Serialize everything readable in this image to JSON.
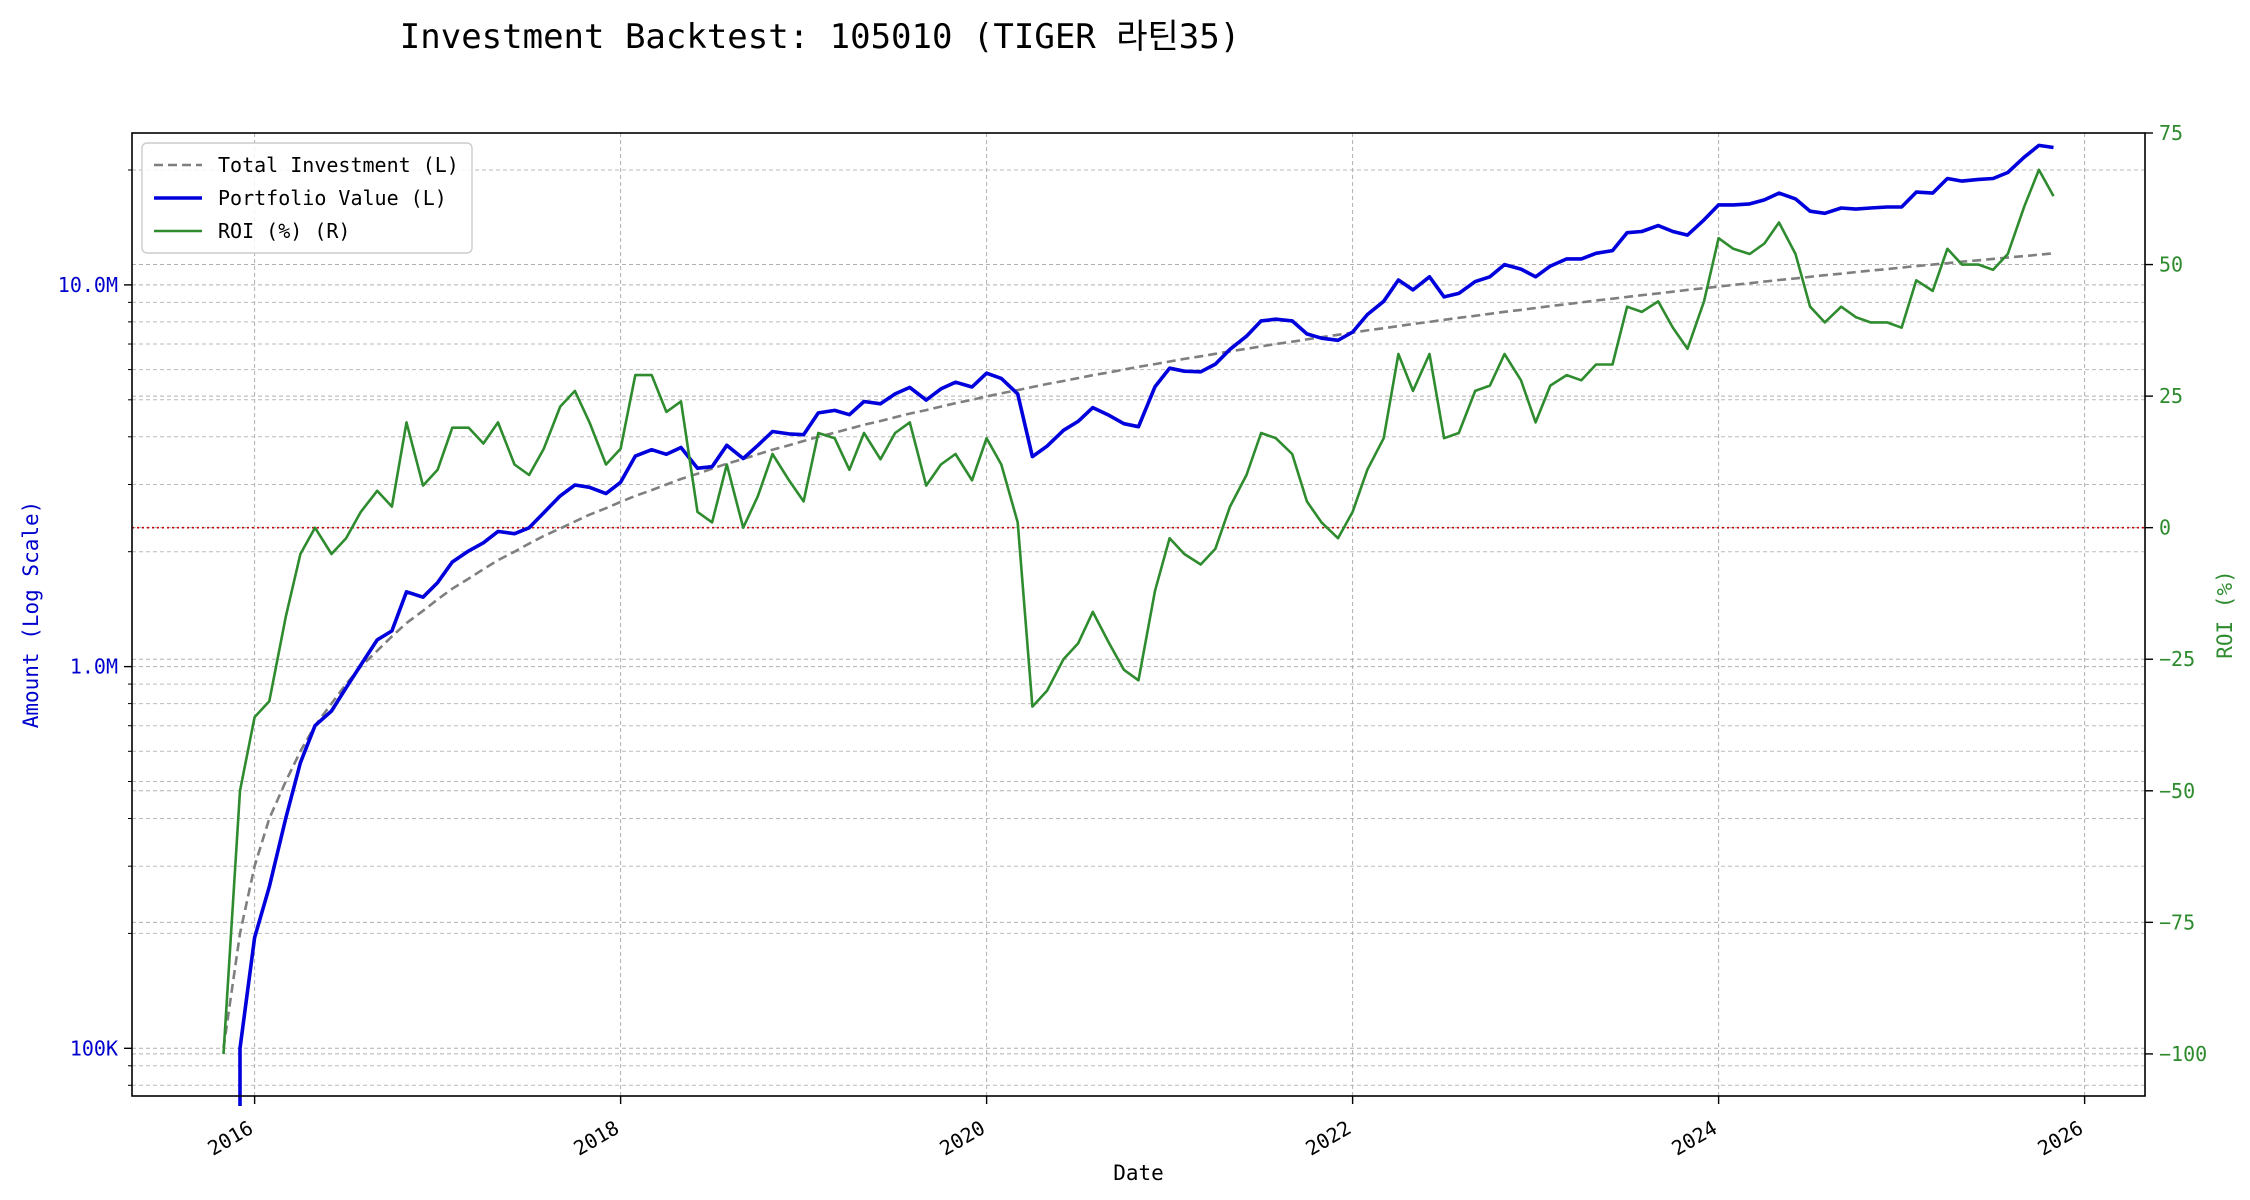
{
  "chart_data": {
    "type": "line",
    "title": "Investment Backtest: 105010 (TIGER 라틴35)",
    "xlabel": "Date",
    "ylabel_left": "Amount (Log Scale)",
    "ylabel_right": "ROI (%)",
    "left_scale": "log",
    "xlim": [
      2015.33,
      2026.33
    ],
    "ylim_left": [
      75000,
      25000000
    ],
    "ylim_right": [
      -108,
      75
    ],
    "x_ticks": [
      2016,
      2018,
      2020,
      2022,
      2024,
      2026
    ],
    "x_tick_labels": [
      "2016",
      "2018",
      "2020",
      "2022",
      "2024",
      "2026"
    ],
    "left_ticks": [
      100000,
      1000000,
      10000000
    ],
    "left_tick_labels": [
      "100K",
      "1.0M",
      "10.0M"
    ],
    "right_ticks": [
      -100,
      -75,
      -50,
      -25,
      0,
      25,
      50,
      75
    ],
    "right_tick_labels": [
      "−100",
      "−75",
      "−50",
      "−25",
      "0",
      "25",
      "50",
      "75"
    ],
    "grid": true,
    "zero_line_color": "#cc0000",
    "legend_position": "top-left",
    "x": [
      2015.83,
      2015.92,
      2016.0,
      2016.08,
      2016.17,
      2016.25,
      2016.33,
      2016.42,
      2016.5,
      2016.58,
      2016.67,
      2016.75,
      2016.83,
      2016.92,
      2017.0,
      2017.08,
      2017.17,
      2017.25,
      2017.33,
      2017.42,
      2017.5,
      2017.58,
      2017.67,
      2017.75,
      2017.83,
      2017.92,
      2018.0,
      2018.08,
      2018.17,
      2018.25,
      2018.33,
      2018.42,
      2018.5,
      2018.58,
      2018.67,
      2018.75,
      2018.83,
      2018.92,
      2019.0,
      2019.08,
      2019.17,
      2019.25,
      2019.33,
      2019.42,
      2019.5,
      2019.58,
      2019.67,
      2019.75,
      2019.83,
      2019.92,
      2020.0,
      2020.08,
      2020.17,
      2020.25,
      2020.33,
      2020.42,
      2020.5,
      2020.58,
      2020.67,
      2020.75,
      2020.83,
      2020.92,
      2021.0,
      2021.08,
      2021.17,
      2021.25,
      2021.33,
      2021.42,
      2021.5,
      2021.58,
      2021.67,
      2021.75,
      2021.83,
      2021.92,
      2022.0,
      2022.08,
      2022.17,
      2022.25,
      2022.33,
      2022.42,
      2022.5,
      2022.58,
      2022.67,
      2022.75,
      2022.83,
      2022.92,
      2023.0,
      2023.08,
      2023.17,
      2023.25,
      2023.33,
      2023.42,
      2023.5,
      2023.58,
      2023.67,
      2023.75,
      2023.83,
      2023.92,
      2024.0,
      2024.08,
      2024.17,
      2024.25,
      2024.33,
      2024.42,
      2024.5,
      2024.58,
      2024.67,
      2024.75,
      2024.83,
      2024.92,
      2025.0,
      2025.08,
      2025.17,
      2025.25,
      2025.33,
      2025.42,
      2025.5,
      2025.58,
      2025.67,
      2025.75,
      2025.83
    ],
    "series": [
      {
        "name": "Total Investment (L)",
        "axis": "left",
        "color": "#7f7f7f",
        "style": "dashed",
        "values": [
          100000,
          200000,
          300000,
          400000,
          500000,
          600000,
          700000,
          800000,
          900000,
          1000000,
          1100000,
          1200000,
          1300000,
          1400000,
          1500000,
          1600000,
          1700000,
          1800000,
          1900000,
          2000000,
          2100000,
          2200000,
          2300000,
          2400000,
          2500000,
          2600000,
          2700000,
          2800000,
          2900000,
          3000000,
          3100000,
          3200000,
          3300000,
          3400000,
          3500000,
          3600000,
          3700000,
          3800000,
          3900000,
          4000000,
          4100000,
          4200000,
          4300000,
          4400000,
          4500000,
          4600000,
          4700000,
          4800000,
          4900000,
          5000000,
          5100000,
          5200000,
          5300000,
          5400000,
          5500000,
          5600000,
          5700000,
          5800000,
          5900000,
          6000000,
          6100000,
          6200000,
          6300000,
          6400000,
          6500000,
          6600000,
          6700000,
          6800000,
          6900000,
          7000000,
          7100000,
          7200000,
          7300000,
          7400000,
          7500000,
          7600000,
          7700000,
          7800000,
          7900000,
          8000000,
          8100000,
          8200000,
          8300000,
          8400000,
          8500000,
          8600000,
          8700000,
          8800000,
          8900000,
          9000000,
          9100000,
          9200000,
          9300000,
          9400000,
          9500000,
          9600000,
          9700000,
          9800000,
          9900000,
          10000000,
          10100000,
          10200000,
          10300000,
          10400000,
          10500000,
          10600000,
          10700000,
          10800000,
          10900000,
          11000000,
          11100000,
          11200000,
          11300000,
          11400000,
          11500000,
          11600000,
          11700000,
          11800000,
          11900000,
          12000000,
          12100000
        ]
      },
      {
        "name": "Portfolio Value (L)",
        "axis": "left",
        "color": "#0000dd",
        "style": "solid",
        "values": [
          null,
          100000,
          195000,
          265000,
          400000,
          560000,
          700000,
          765000,
          880000,
          1010000,
          1175000,
          1240000,
          1570000,
          1520000,
          1660000,
          1880000,
          2010000,
          2110000,
          2260000,
          2230000,
          2310000,
          2530000,
          2800000,
          2990000,
          2950000,
          2840000,
          3040000,
          3560000,
          3700000,
          3600000,
          3750000,
          3310000,
          3340000,
          3800000,
          3510000,
          3800000,
          4130000,
          4070000,
          4050000,
          4620000,
          4690000,
          4570000,
          4950000,
          4880000,
          5180000,
          5390000,
          4990000,
          5340000,
          5560000,
          5400000,
          5870000,
          5690000,
          5180000,
          3550000,
          3780000,
          4160000,
          4390000,
          4770000,
          4550000,
          4330000,
          4250000,
          5410000,
          6050000,
          5940000,
          5920000,
          6200000,
          6780000,
          7340000,
          8050000,
          8130000,
          8050000,
          7440000,
          7250000,
          7160000,
          7520000,
          8360000,
          9060000,
          10300000,
          9700000,
          10500000,
          9300000,
          9500000,
          10200000,
          10500000,
          11300000,
          11000000,
          10500000,
          11200000,
          11700000,
          11700000,
          12100000,
          12300000,
          13700000,
          13800000,
          14300000,
          13800000,
          13500000,
          14800000,
          16200000,
          16200000,
          16300000,
          16700000,
          17400000,
          16800000,
          15600000,
          15400000,
          15900000,
          15800000,
          15900000,
          16000000,
          16000000,
          17500000,
          17400000,
          19000000,
          18700000,
          18900000,
          19000000,
          19700000,
          21600000,
          23200000,
          22900000
        ]
      },
      {
        "name": "ROI (%) (R)",
        "axis": "right",
        "color": "#2e8b2e",
        "style": "solid",
        "values": [
          -100,
          -50,
          -36,
          -33,
          -17,
          -5,
          0,
          -5,
          -2,
          3,
          7,
          4,
          20,
          8,
          11,
          19,
          19,
          16,
          20,
          12,
          10,
          15,
          23,
          26,
          20,
          12,
          15,
          29,
          29,
          22,
          24,
          3,
          1,
          12,
          0,
          6,
          14,
          9,
          5,
          18,
          17,
          11,
          18,
          13,
          18,
          20,
          8,
          12,
          14,
          9,
          17,
          12,
          1,
          -34,
          -31,
          -25,
          -22,
          -16,
          -22,
          -27,
          -29,
          -12,
          -2,
          -5,
          -7,
          -4,
          4,
          10,
          18,
          17,
          14,
          5,
          1,
          -2,
          3,
          11,
          17,
          33,
          26,
          33,
          17,
          18,
          26,
          27,
          33,
          28,
          20,
          27,
          29,
          28,
          31,
          31,
          42,
          41,
          43,
          38,
          34,
          43,
          55,
          53,
          52,
          54,
          58,
          52,
          42,
          39,
          42,
          40,
          39,
          39,
          38,
          47,
          45,
          53,
          50,
          50,
          49,
          52,
          61,
          68,
          63
        ]
      }
    ]
  }
}
